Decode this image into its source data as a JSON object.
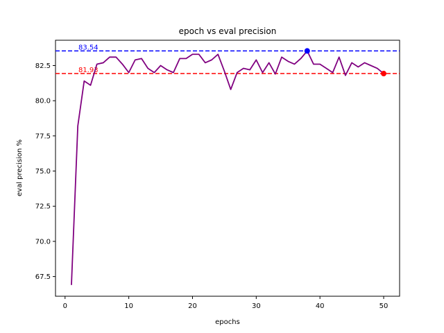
{
  "chart_data": {
    "type": "line",
    "title": "epoch vs eval precision",
    "xlabel": "epochs",
    "ylabel": "eval precision %",
    "xlim": [
      -1.5,
      52.5
    ],
    "ylim": [
      66.1,
      84.3
    ],
    "xticks": [
      0,
      10,
      20,
      30,
      40,
      50
    ],
    "yticks": [
      67.5,
      70.0,
      72.5,
      75.0,
      77.5,
      80.0,
      82.5
    ],
    "ytick_labels": [
      "67.5",
      "70.0",
      "72.5",
      "75.0",
      "77.5",
      "80.0",
      "82.5"
    ],
    "grid": false,
    "series": [
      {
        "color": "#800080",
        "x": [
          1,
          2,
          3,
          4,
          5,
          6,
          7,
          8,
          9,
          10,
          11,
          12,
          13,
          14,
          15,
          16,
          17,
          18,
          19,
          20,
          21,
          22,
          23,
          24,
          25,
          26,
          27,
          28,
          29,
          30,
          31,
          32,
          33,
          34,
          35,
          36,
          37,
          38,
          39,
          40,
          41,
          42,
          43,
          44,
          45,
          46,
          47,
          48,
          49,
          50
        ],
        "y": [
          66.9,
          78.2,
          81.4,
          81.1,
          82.6,
          82.7,
          83.1,
          83.1,
          82.6,
          82.0,
          82.9,
          83.0,
          82.3,
          82.0,
          82.5,
          82.2,
          82.0,
          83.0,
          83.0,
          83.3,
          83.3,
          82.7,
          82.9,
          83.3,
          82.1,
          80.8,
          82.0,
          82.3,
          82.2,
          82.9,
          82.0,
          82.7,
          81.9,
          83.1,
          82.8,
          82.6,
          83.0,
          83.54,
          82.6,
          82.6,
          82.3,
          82.0,
          83.1,
          81.8,
          82.7,
          82.4,
          82.7,
          82.5,
          82.3,
          81.93
        ]
      }
    ],
    "reference_lines": [
      {
        "y": 83.54,
        "label": "83.54",
        "color": "#0000ff"
      },
      {
        "y": 81.93,
        "label": "81.93",
        "color": "#ff0000"
      }
    ],
    "markers": [
      {
        "x": 38,
        "y": 83.54,
        "color": "#0000ff"
      },
      {
        "x": 50,
        "y": 81.93,
        "color": "#ff0000"
      }
    ]
  }
}
